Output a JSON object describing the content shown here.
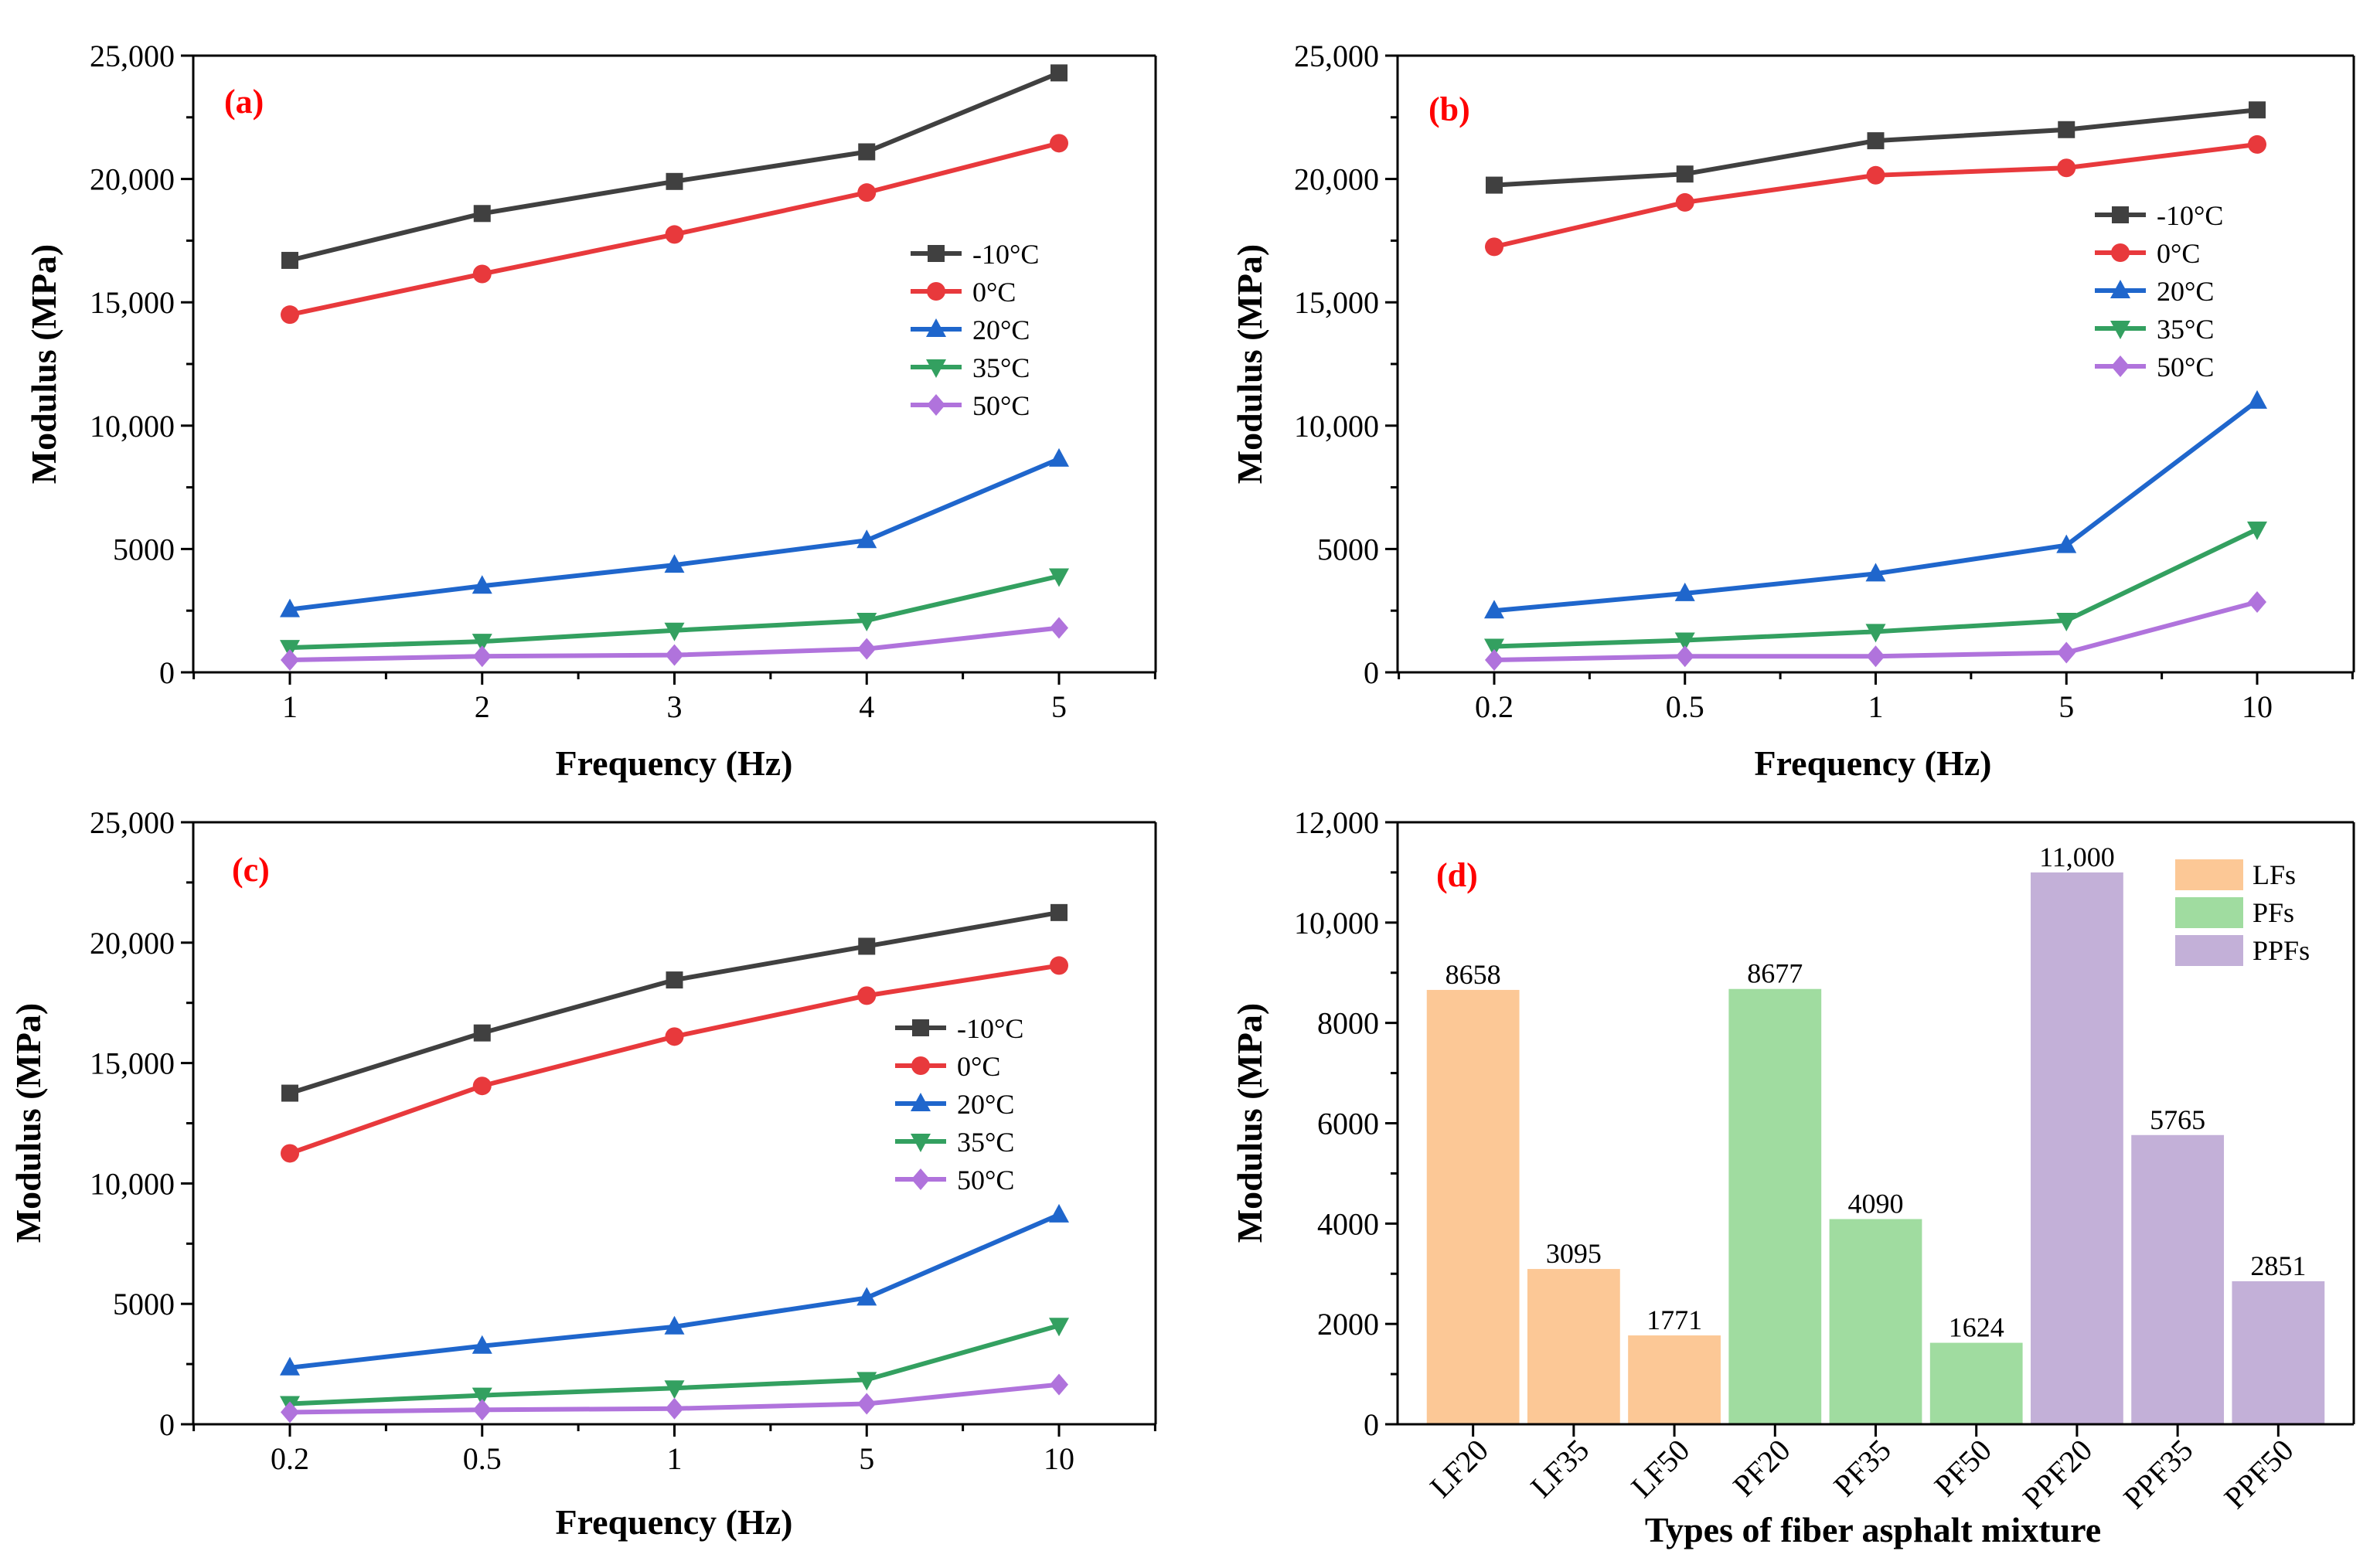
{
  "chart_data": [
    {
      "type": "line",
      "tag": "(a)",
      "xlabel": "Frequency (Hz)",
      "ylabel": "Modulus (MPa)",
      "categories": [
        "1",
        "2",
        "3",
        "4",
        "5"
      ],
      "ylim": [
        0,
        25000
      ],
      "yticks": [
        0,
        5000,
        10000,
        15000,
        20000,
        25000
      ],
      "ytick_labels": [
        "0",
        "5000",
        "10,000",
        "15,000",
        "20,000",
        "25,000"
      ],
      "legend_position": "right-middle",
      "series": [
        {
          "name": "-10°C",
          "color": "#404040",
          "marker": "square",
          "values": [
            16700,
            18600,
            19900,
            21100,
            24300
          ]
        },
        {
          "name": "0°C",
          "color": "#e8393c",
          "marker": "circle",
          "values": [
            14500,
            16150,
            17750,
            19450,
            21450
          ]
        },
        {
          "name": "20°C",
          "color": "#1f66cc",
          "marker": "triangle-up",
          "values": [
            2550,
            3500,
            4350,
            5350,
            8650
          ]
        },
        {
          "name": "35°C",
          "color": "#33a060",
          "marker": "triangle-down",
          "values": [
            1000,
            1250,
            1700,
            2100,
            3900
          ]
        },
        {
          "name": "50°C",
          "color": "#b073dc",
          "marker": "diamond",
          "values": [
            500,
            650,
            700,
            950,
            1800
          ]
        }
      ]
    },
    {
      "type": "line",
      "tag": "(b)",
      "xlabel": "Frequency (Hz)",
      "ylabel": "Modulus (MPa)",
      "categories": [
        "0.2",
        "0.5",
        "1",
        "5",
        "10"
      ],
      "ylim": [
        0,
        25000
      ],
      "yticks": [
        0,
        5000,
        10000,
        15000,
        20000,
        25000
      ],
      "ytick_labels": [
        "0",
        "5000",
        "10,000",
        "15,000",
        "20,000",
        "25,000"
      ],
      "legend_position": "top-right",
      "series": [
        {
          "name": "-10°C",
          "color": "#404040",
          "marker": "square",
          "values": [
            19750,
            20200,
            21550,
            22000,
            22800
          ]
        },
        {
          "name": "0°C",
          "color": "#e8393c",
          "marker": "circle",
          "values": [
            17250,
            19050,
            20150,
            20450,
            21400
          ]
        },
        {
          "name": "20°C",
          "color": "#1f66cc",
          "marker": "triangle-up",
          "values": [
            2500,
            3200,
            4000,
            5150,
            11000
          ]
        },
        {
          "name": "35°C",
          "color": "#33a060",
          "marker": "triangle-down",
          "values": [
            1050,
            1300,
            1650,
            2100,
            5800
          ]
        },
        {
          "name": "50°C",
          "color": "#b073dc",
          "marker": "diamond",
          "values": [
            500,
            650,
            650,
            800,
            2850
          ]
        }
      ]
    },
    {
      "type": "line",
      "tag": "(c)",
      "xlabel": "Frequency (Hz)",
      "ylabel": "Modulus (MPa)",
      "categories": [
        "0.2",
        "0.5",
        "1",
        "5",
        "10"
      ],
      "ylim": [
        0,
        25000
      ],
      "yticks": [
        0,
        5000,
        10000,
        15000,
        20000,
        25000
      ],
      "ytick_labels": [
        "0",
        "5000",
        "10,000",
        "15,000",
        "20,000",
        "25,000"
      ],
      "legend_position": "right-middle",
      "series": [
        {
          "name": "-10°C",
          "color": "#404040",
          "marker": "square",
          "values": [
            13750,
            16250,
            18450,
            19850,
            21250
          ]
        },
        {
          "name": "0°C",
          "color": "#e8393c",
          "marker": "circle",
          "values": [
            11250,
            14050,
            16100,
            17800,
            19050
          ]
        },
        {
          "name": "20°C",
          "color": "#1f66cc",
          "marker": "triangle-up",
          "values": [
            2350,
            3250,
            4050,
            5250,
            8700
          ]
        },
        {
          "name": "35°C",
          "color": "#33a060",
          "marker": "triangle-down",
          "values": [
            850,
            1200,
            1500,
            1850,
            4100
          ]
        },
        {
          "name": "50°C",
          "color": "#b073dc",
          "marker": "diamond",
          "values": [
            500,
            600,
            650,
            850,
            1650
          ]
        }
      ]
    },
    {
      "type": "bar",
      "tag": "(d)",
      "xlabel": "Types of fiber asphalt mixture",
      "ylabel": "Modulus (MPa)",
      "categories": [
        "LF20",
        "LF35",
        "LF50",
        "PF20",
        "PF35",
        "PF50",
        "PPF20",
        "PPF35",
        "PPF50"
      ],
      "values": [
        8658,
        3095,
        1771,
        8677,
        4090,
        1624,
        11000,
        5765,
        2851
      ],
      "value_labels": [
        "8658",
        "3095",
        "1771",
        "8677",
        "4090",
        "1624",
        "11,000",
        "5765",
        "2851"
      ],
      "groups": [
        "LFs",
        "LFs",
        "LFs",
        "PFs",
        "PFs",
        "PFs",
        "PPFs",
        "PPFs",
        "PPFs"
      ],
      "legend": [
        {
          "name": "LFs",
          "color": "#fcc896"
        },
        {
          "name": "PFs",
          "color": "#a0dca0"
        },
        {
          "name": "PPFs",
          "color": "#c3b0d8"
        }
      ],
      "ylim": [
        0,
        12000
      ],
      "yticks": [
        0,
        2000,
        4000,
        6000,
        8000,
        10000,
        12000
      ],
      "ytick_labels": [
        "0",
        "2000",
        "4000",
        "6000",
        "8000",
        "10,000",
        "12,000"
      ],
      "legend_position": "top-right"
    }
  ]
}
